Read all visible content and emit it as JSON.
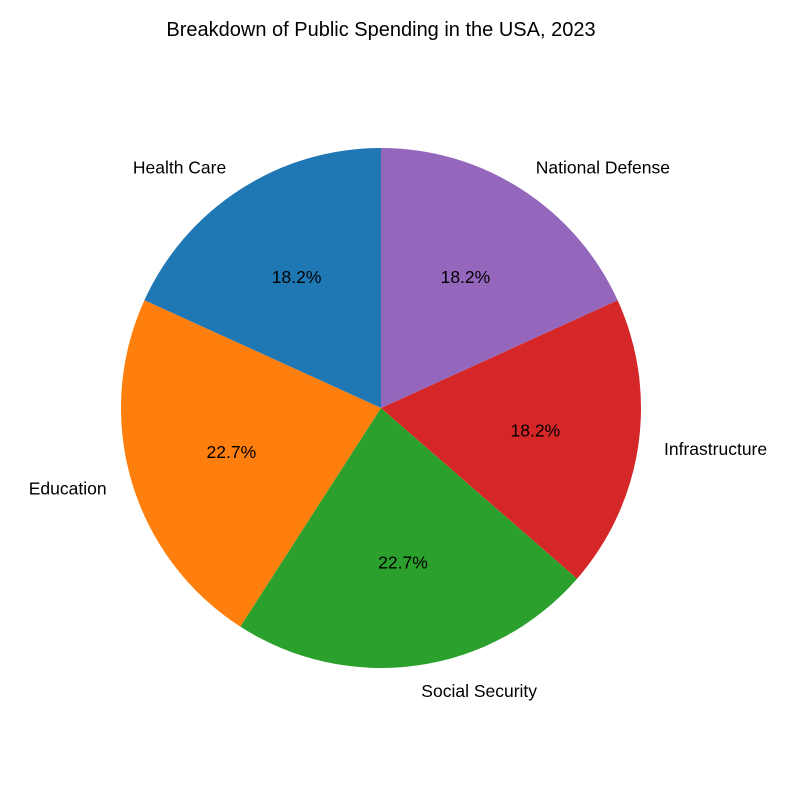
{
  "chart_data": {
    "type": "pie",
    "title": "Breakdown of Public Spending in the USA, 2023",
    "slices": [
      {
        "label": "Health Care",
        "value": 18.2,
        "percent_label": "18.2%",
        "color": "#1f77b4"
      },
      {
        "label": "Education",
        "value": 22.7,
        "percent_label": "22.7%",
        "color": "#ff7f0e"
      },
      {
        "label": "Social Security",
        "value": 22.7,
        "percent_label": "22.7%",
        "color": "#2ca02c"
      },
      {
        "label": "Infrastructure",
        "value": 18.2,
        "percent_label": "18.2%",
        "color": "#d62728"
      },
      {
        "label": "National Defense",
        "value": 18.2,
        "percent_label": "18.2%",
        "color": "#9467bd"
      }
    ],
    "start_angle_deg": 90,
    "direction": "counterclockwise",
    "legend": "none"
  }
}
